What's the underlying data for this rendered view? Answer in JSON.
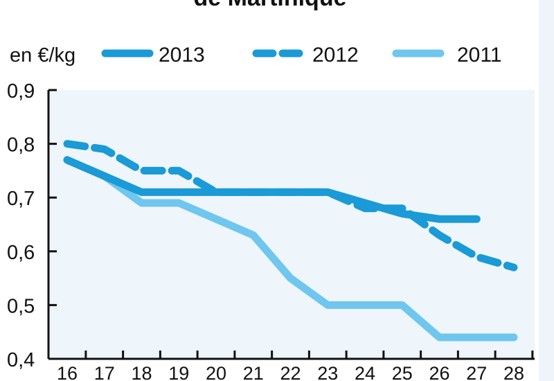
{
  "title": "de Martinique",
  "chart_data": {
    "type": "line",
    "unit_label": "en €/kg",
    "x": [
      16,
      17,
      18,
      19,
      20,
      21,
      22,
      23,
      24,
      25,
      26,
      27,
      28
    ],
    "x_ticks": [
      "16",
      "17",
      "18",
      "19",
      "20",
      "21",
      "22",
      "23",
      "24",
      "25",
      "26",
      "27",
      "28"
    ],
    "y_ticks": [
      "0,4",
      "0,5",
      "0,6",
      "0,7",
      "0,8",
      "0,9"
    ],
    "ylim": [
      0.4,
      0.9
    ],
    "legend_position": "top",
    "series": [
      {
        "name": "2013",
        "style": "solid-thick",
        "color": "#1a9ad6",
        "x": [
          16,
          17,
          18,
          19,
          20,
          21,
          22,
          23,
          24,
          25,
          26,
          27
        ],
        "values": [
          0.77,
          0.74,
          0.71,
          0.71,
          0.71,
          0.71,
          0.71,
          0.71,
          0.69,
          0.67,
          0.66,
          0.66
        ]
      },
      {
        "name": "2012",
        "style": "dashed",
        "color": "#1a9ad6",
        "x": [
          16,
          17,
          18,
          19,
          20,
          21,
          22,
          23,
          24,
          25,
          26,
          27,
          28
        ],
        "values": [
          0.8,
          0.79,
          0.75,
          0.75,
          0.71,
          0.71,
          0.71,
          0.71,
          0.68,
          0.68,
          0.63,
          0.59,
          0.57
        ]
      },
      {
        "name": "2011",
        "style": "solid-light",
        "color": "#6fc6ee",
        "x": [
          16,
          17,
          18,
          19,
          20,
          21,
          22,
          23,
          24,
          25,
          26,
          27,
          28
        ],
        "values": [
          0.77,
          0.74,
          0.69,
          0.69,
          0.66,
          0.63,
          0.55,
          0.5,
          0.5,
          0.5,
          0.44,
          0.44,
          0.44
        ]
      }
    ]
  }
}
